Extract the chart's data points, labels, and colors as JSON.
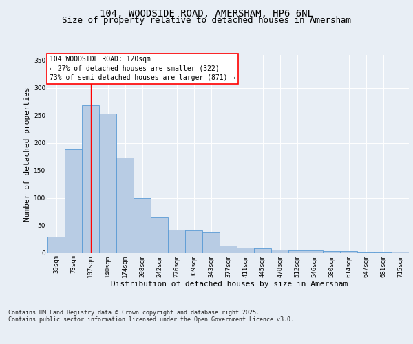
{
  "title_line1": "104, WOODSIDE ROAD, AMERSHAM, HP6 6NL",
  "title_line2": "Size of property relative to detached houses in Amersham",
  "xlabel": "Distribution of detached houses by size in Amersham",
  "ylabel": "Number of detached properties",
  "categories": [
    "39sqm",
    "73sqm",
    "107sqm",
    "140sqm",
    "174sqm",
    "208sqm",
    "242sqm",
    "276sqm",
    "309sqm",
    "343sqm",
    "377sqm",
    "411sqm",
    "445sqm",
    "478sqm",
    "512sqm",
    "546sqm",
    "580sqm",
    "614sqm",
    "647sqm",
    "681sqm",
    "715sqm"
  ],
  "values": [
    30,
    188,
    269,
    253,
    174,
    100,
    65,
    42,
    41,
    38,
    13,
    9,
    8,
    6,
    4,
    4,
    3,
    3,
    1,
    1,
    2
  ],
  "bar_color": "#b8cce4",
  "bar_edge_color": "#5b9bd5",
  "bar_width": 1.0,
  "vline_x": 2.0,
  "vline_color": "red",
  "annotation_text": "104 WOODSIDE ROAD: 120sqm\n← 27% of detached houses are smaller (322)\n73% of semi-detached houses are larger (871) →",
  "annotation_box_color": "white",
  "annotation_box_edge": "red",
  "ylim": [
    0,
    360
  ],
  "yticks": [
    0,
    50,
    100,
    150,
    200,
    250,
    300,
    350
  ],
  "footer_text": "Contains HM Land Registry data © Crown copyright and database right 2025.\nContains public sector information licensed under the Open Government Licence v3.0.",
  "bg_color": "#e8eef5",
  "plot_bg_color": "#e8eef5",
  "title_fontsize": 10,
  "subtitle_fontsize": 9,
  "axis_label_fontsize": 8,
  "tick_fontsize": 6.5,
  "annotation_fontsize": 7,
  "footer_fontsize": 6
}
